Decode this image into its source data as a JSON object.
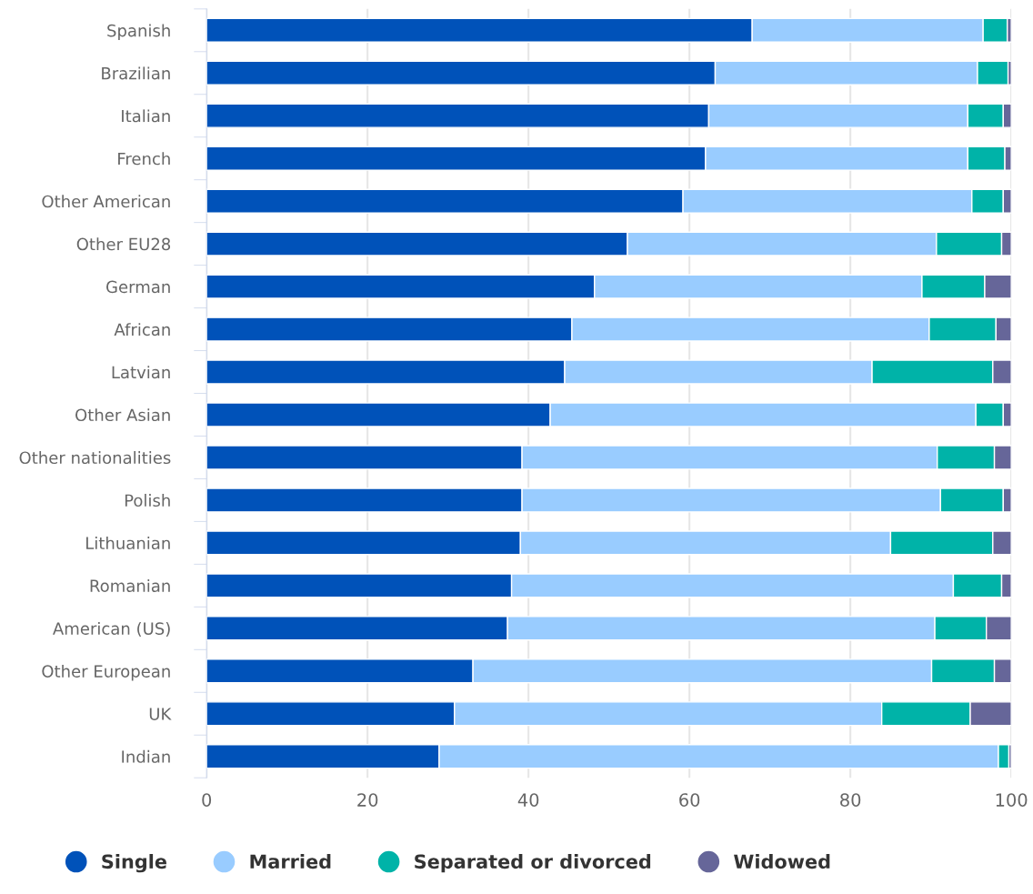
{
  "chart_data": {
    "type": "bar",
    "orientation": "horizontal",
    "stacked": true,
    "categories": [
      "Spanish",
      "Brazilian",
      "Italian",
      "French",
      "Other American",
      "Other EU28",
      "German",
      "African",
      "Latvian",
      "Other Asian",
      "Other nationalities",
      "Polish",
      "Lithuanian",
      "Romanian",
      "American (US)",
      "Other European",
      "UK",
      "Indian"
    ],
    "series": [
      {
        "name": "Single",
        "color": "#0052b9",
        "values": [
          67.8,
          63.2,
          62.4,
          62.0,
          59.2,
          52.3,
          48.2,
          45.4,
          44.5,
          42.7,
          39.2,
          39.2,
          39.0,
          37.9,
          37.4,
          33.1,
          30.8,
          28.9
        ]
      },
      {
        "name": "Married",
        "color": "#99ccff",
        "values": [
          28.7,
          32.6,
          32.2,
          32.6,
          35.9,
          38.4,
          40.7,
          44.4,
          38.2,
          52.9,
          51.6,
          52.0,
          46.0,
          54.9,
          53.1,
          57.0,
          53.1,
          69.5
        ]
      },
      {
        "name": "Separated or divorced",
        "color": "#00b3a8",
        "values": [
          3.0,
          3.8,
          4.4,
          4.6,
          3.9,
          8.1,
          7.8,
          8.3,
          15.0,
          3.4,
          7.1,
          7.8,
          12.7,
          6.0,
          6.4,
          7.8,
          11.0,
          1.3
        ]
      },
      {
        "name": "Widowed",
        "color": "#666699",
        "values": [
          0.5,
          0.4,
          1.0,
          0.8,
          1.0,
          1.2,
          3.3,
          1.9,
          2.3,
          1.0,
          2.1,
          1.0,
          2.3,
          1.2,
          3.1,
          2.1,
          5.1,
          0.3
        ]
      }
    ],
    "xlim": [
      0,
      100
    ],
    "xticks": [
      0,
      20,
      40,
      60,
      80,
      100
    ],
    "grid": "x",
    "legend": "bottom",
    "marker": "circle"
  }
}
